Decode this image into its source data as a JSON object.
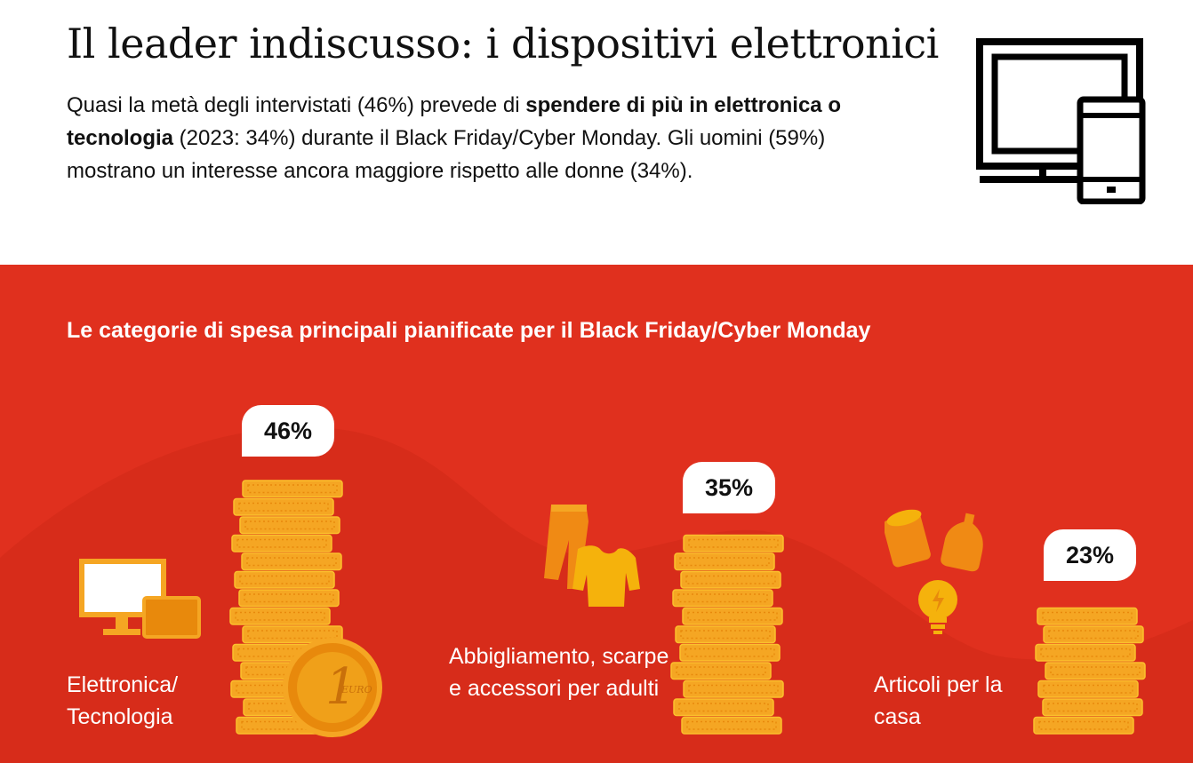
{
  "header": {
    "title": "Il leader indiscusso: i dispositivi elettronici",
    "intro_part1": "Quasi la metà degli intervistati (46%) prevede di ",
    "intro_bold": "spendere di più in elettronica o tecnologia",
    "intro_part2": " (2023: 34%) durante il Black Friday/Cyber Monday. Gli uomini (59%) mostrano un interesse ancora maggiore rispetto alle donne (34%).",
    "icon": "computer-and-tablet-icon"
  },
  "chart_data": {
    "type": "bar",
    "title": "Le categorie di spesa principali pianificate per il Black Friday/Cyber Monday",
    "categories": [
      "Elettronica/ Tecnologia",
      "Abbigliamento, scarpe e accessori per adulti",
      "Articoli per la casa"
    ],
    "values": [
      46,
      35,
      23
    ],
    "value_labels": [
      "46%",
      "35%",
      "23%"
    ],
    "unit": "%",
    "mark_style": "stacked coins",
    "category_icons": [
      "monitor-and-tablet-icon",
      "clothing-icon",
      "household-items-icon"
    ],
    "coin_label": "1 EURO",
    "colors": {
      "background": "#e0301e",
      "coin": "#f5a623",
      "coin_dark": "#e8890c",
      "label_text": "#ffffff"
    }
  }
}
